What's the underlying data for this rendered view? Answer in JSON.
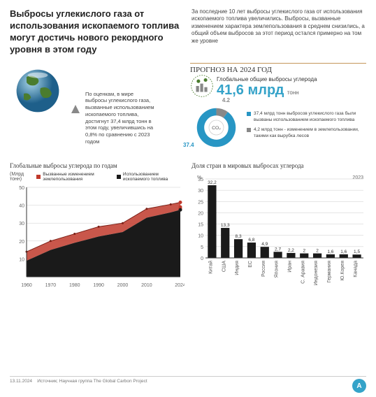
{
  "headline": "Выбросы углекислого газа от использования ископаемого топлива могут достичь нового рекордного уровня в этом году",
  "intro": "За последние 10 лет выбросы углекислого газа от использования ископаемого топлива увеличились. Выбросы, вызванные изменением характера землепользования в среднем снизились, а общий объем выбросов за этот период остался примерно на том же уровне",
  "globe_text": "По оценкам, в мире выбросы углекислого газа, вызванные использованием ископаемого топлива, достигнут 37,4 млрд тонн в этом году, увеличившись на 0,8% по сравнению с 2023 годом",
  "forecast": {
    "title": "ПРОГНОЗ НА 2024 ГОД",
    "subtitle": "Глобальные общие выбросы углерода",
    "value": "41,6 млрд",
    "unit": "тонн",
    "donut": {
      "fossil": 37.4,
      "land": 4.2,
      "fossil_color": "#2896c4",
      "land_color": "#888888",
      "center_label": "CO₂"
    },
    "legend": [
      {
        "color": "#2896c4",
        "text": "37,4 млрд тонн выбросов углекислого газа были вызваны использованием ископаемого топлива"
      },
      {
        "color": "#888888",
        "text": "4,2 млрд тонн - изменением в землепользовании, такими как вырубка лесов"
      }
    ]
  },
  "area_chart": {
    "title": "Глобальные выбросы углерода по годам",
    "ylabel": "(Млрд тонн)",
    "legend": [
      {
        "color": "#c0392b",
        "label": "Вызванные изменением землепользования"
      },
      {
        "color": "#1a1a1a",
        "label": "Использованием ископаемого топлива"
      }
    ],
    "x_ticks": [
      1960,
      1970,
      1980,
      1990,
      2000,
      2010,
      2024
    ],
    "y_ticks": [
      10,
      20,
      30,
      40,
      50
    ],
    "ylim": [
      0,
      50
    ],
    "xlim": [
      1960,
      2024
    ],
    "black_series": [
      {
        "x": 1960,
        "y": 9
      },
      {
        "x": 1970,
        "y": 15
      },
      {
        "x": 1980,
        "y": 19
      },
      {
        "x": 1990,
        "y": 22.5
      },
      {
        "x": 2000,
        "y": 25
      },
      {
        "x": 2010,
        "y": 33
      },
      {
        "x": 2020,
        "y": 36
      },
      {
        "x": 2024,
        "y": 37.4
      }
    ],
    "red_series": [
      {
        "x": 1960,
        "y": 14
      },
      {
        "x": 1970,
        "y": 20
      },
      {
        "x": 1980,
        "y": 24
      },
      {
        "x": 1990,
        "y": 28
      },
      {
        "x": 2000,
        "y": 30
      },
      {
        "x": 2010,
        "y": 38
      },
      {
        "x": 2020,
        "y": 40.5
      },
      {
        "x": 2024,
        "y": 41.6
      }
    ],
    "end_points": [
      {
        "x": 2024,
        "y": 41.6,
        "color": "#c0392b"
      },
      {
        "x": 2024,
        "y": 39,
        "color": "#c0392b"
      },
      {
        "x": 2024,
        "y": 38,
        "color": "#c0392b"
      },
      {
        "x": 2024,
        "y": 37.4,
        "color": "#1a1a1a"
      }
    ]
  },
  "bar_chart": {
    "title": "Доля стран в мировых выбросах углерода",
    "year": "2023",
    "y_ticks": [
      0,
      5,
      10,
      15,
      20,
      25,
      30,
      35
    ],
    "ylim": [
      0,
      35
    ],
    "bar_color": "#1a1a1a",
    "bars": [
      {
        "label": "Китай",
        "value": 32.2
      },
      {
        "label": "США",
        "value": 13.3
      },
      {
        "label": "Индия",
        "value": 8.3
      },
      {
        "label": "ЕС",
        "value": 6.8
      },
      {
        "label": "Россия",
        "value": 4.9
      },
      {
        "label": "Япония",
        "value": 2.7
      },
      {
        "label": "Иран",
        "value": 2.2
      },
      {
        "label": "С. Аравия",
        "value": 2
      },
      {
        "label": "Индонезия",
        "value": 2
      },
      {
        "label": "Германия",
        "value": 1.6
      },
      {
        "label": "Ю.Корея",
        "value": 1.6
      },
      {
        "label": "Канада",
        "value": 1.5
      }
    ]
  },
  "footer": {
    "date": "13.11.2024",
    "source_label": "Источник;",
    "source": "Научная группа The Global Carbon Project"
  },
  "colors": {
    "accent": "#35a3c9",
    "grid": "#cccccc",
    "text": "#333333"
  }
}
